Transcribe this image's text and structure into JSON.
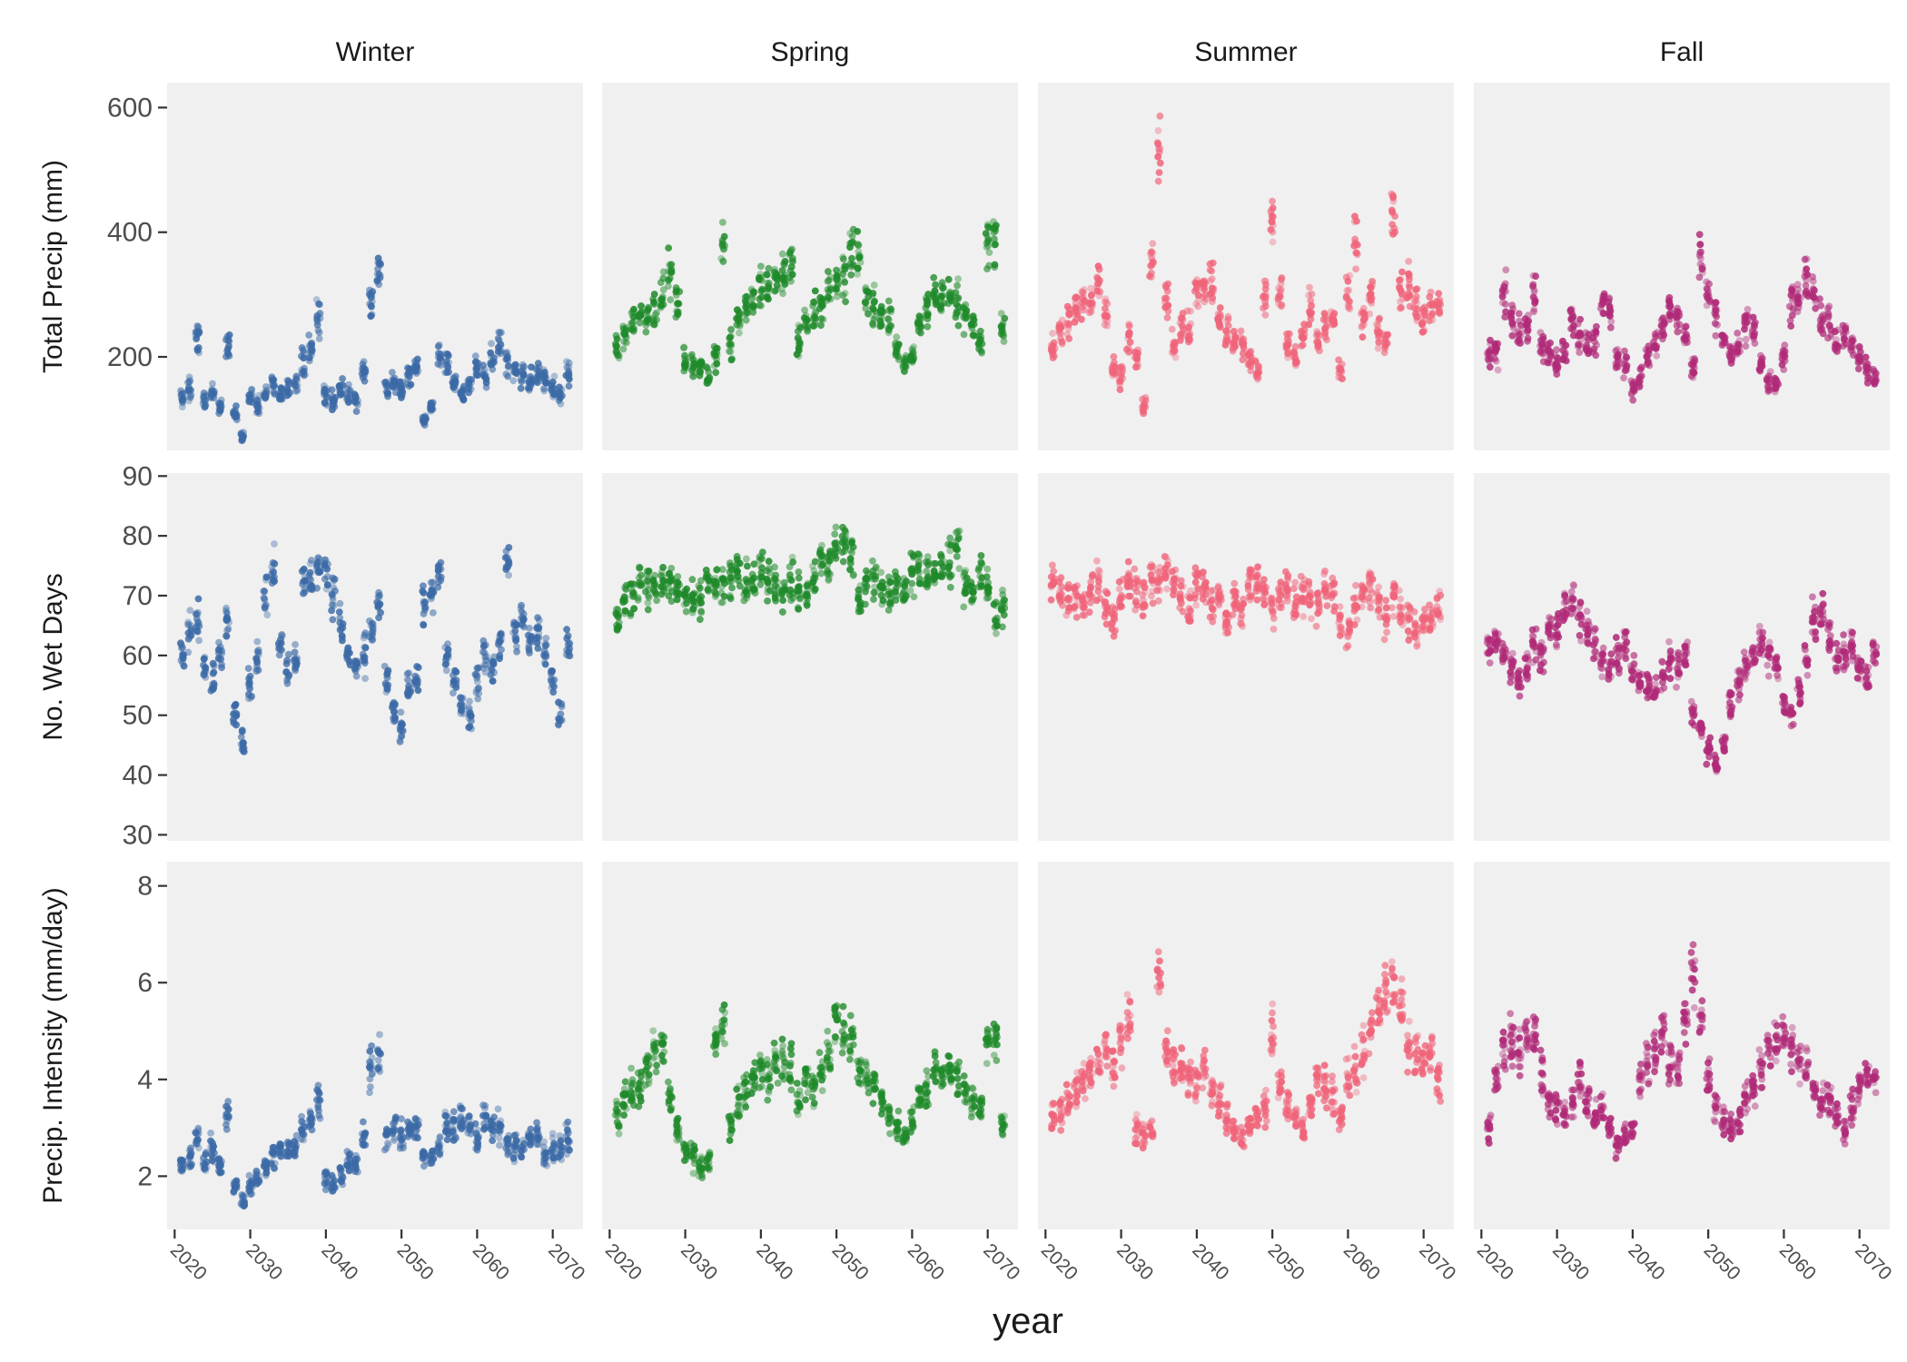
{
  "chart_data": {
    "type": "scatter",
    "facets": {
      "columns": [
        "Winter",
        "Spring",
        "Summer",
        "Fall"
      ],
      "rows": [
        {
          "key": "total_precip",
          "ylabel": "Total Precip (mm)",
          "ylim": [
            50,
            640
          ],
          "yticks": [
            200,
            400,
            600
          ]
        },
        {
          "key": "wet_days",
          "ylabel": "No. Wet Days",
          "ylim": [
            29,
            90.5
          ],
          "yticks": [
            30,
            40,
            50,
            60,
            70,
            80,
            90
          ]
        },
        {
          "key": "intensity",
          "ylabel": "Precip. Intensity (mm/day)",
          "ylim": [
            0.9,
            8.5
          ],
          "yticks": [
            2,
            4,
            6,
            8
          ]
        }
      ]
    },
    "xlabel": "year",
    "xlim": [
      2019,
      2074
    ],
    "xticks": [
      2020,
      2030,
      2040,
      2050,
      2060,
      2070
    ],
    "colors": {
      "Winter": "#3b6aa6",
      "Spring": "#1f8a2a",
      "Summer": "#f0647a",
      "Fall": "#b02a78"
    },
    "panel_background": "#f0f0f0",
    "legend": "none",
    "grid": false,
    "years": [
      2021,
      2072
    ],
    "members_per_year": 13,
    "series": {
      "Winter": {
        "total_precip": [
          135,
          150,
          230,
          130,
          145,
          120,
          220,
          110,
          70,
          130,
          120,
          140,
          155,
          140,
          150,
          160,
          190,
          210,
          260,
          140,
          130,
          150,
          140,
          130,
          180,
          290,
          330,
          150,
          160,
          150,
          170,
          180,
          100,
          120,
          200,
          190,
          160,
          140,
          155,
          180,
          170,
          200,
          220,
          190,
          175,
          170,
          160,
          175,
          165,
          150,
          140,
          170
        ],
        "wet_days": [
          60,
          64,
          66,
          58,
          56,
          60,
          66,
          50,
          45,
          55,
          60,
          70,
          74,
          62,
          58,
          60,
          72,
          73,
          74,
          75,
          70,
          65,
          60,
          58,
          60,
          64,
          68,
          56,
          50,
          48,
          55,
          56,
          68,
          70,
          74,
          60,
          55,
          52,
          50,
          56,
          60,
          58,
          62,
          76,
          64,
          66,
          62,
          64,
          60,
          56,
          50,
          62
        ],
        "intensity": [
          2.2,
          2.4,
          2.8,
          2.3,
          2.6,
          2.2,
          3.2,
          1.8,
          1.5,
          1.8,
          2.0,
          2.2,
          2.4,
          2.5,
          2.6,
          2.6,
          3.0,
          3.2,
          3.6,
          2.0,
          1.8,
          2.0,
          2.3,
          2.2,
          2.8,
          4.2,
          4.5,
          2.8,
          3.0,
          2.8,
          3.0,
          3.0,
          2.4,
          2.4,
          2.6,
          3.0,
          3.0,
          3.2,
          3.0,
          2.8,
          3.2,
          3.0,
          3.0,
          2.6,
          2.6,
          2.6,
          2.8,
          2.8,
          2.4,
          2.6,
          2.5,
          2.8
        ]
      },
      "Spring": {
        "total_precip": [
          210,
          240,
          255,
          265,
          270,
          280,
          300,
          330,
          290,
          200,
          190,
          180,
          170,
          200,
          380,
          220,
          260,
          280,
          285,
          300,
          310,
          320,
          330,
          340,
          230,
          260,
          270,
          280,
          300,
          320,
          330,
          360,
          370,
          290,
          280,
          270,
          260,
          210,
          190,
          200,
          250,
          280,
          300,
          290,
          300,
          290,
          270,
          250,
          220,
          380,
          390,
          240
        ],
        "wet_days": [
          66,
          69,
          70,
          72,
          71,
          72,
          72,
          72,
          71,
          70,
          70,
          70,
          73,
          72,
          72,
          73,
          74,
          72,
          72,
          74,
          73,
          72,
          70,
          72,
          71,
          70,
          73,
          76,
          75,
          78,
          79,
          77,
          70,
          72,
          73,
          71,
          70,
          72,
          70,
          74,
          75,
          74,
          73,
          75,
          76,
          78,
          72,
          70,
          74,
          72,
          66,
          68
        ],
        "intensity": [
          3.2,
          3.6,
          3.8,
          3.8,
          4.2,
          4.5,
          4.6,
          3.6,
          3.0,
          2.5,
          2.4,
          2.2,
          2.3,
          4.8,
          5.2,
          3.0,
          3.5,
          3.8,
          4.0,
          4.2,
          4.0,
          4.3,
          4.4,
          4.2,
          3.5,
          3.8,
          3.8,
          4.2,
          4.5,
          5.2,
          5.0,
          4.8,
          4.2,
          4.0,
          4.0,
          3.6,
          3.3,
          3.0,
          2.8,
          3.2,
          3.6,
          3.8,
          4.2,
          4.2,
          4.2,
          4.0,
          3.8,
          3.6,
          3.4,
          4.8,
          4.8,
          3.2
        ]
      },
      "Summer": {
        "total_precip": [
          220,
          240,
          260,
          280,
          285,
          290,
          330,
          270,
          180,
          170,
          230,
          200,
          120,
          350,
          520,
          300,
          220,
          250,
          240,
          310,
          300,
          320,
          260,
          240,
          230,
          220,
          200,
          180,
          300,
          420,
          300,
          220,
          200,
          230,
          280,
          230,
          250,
          260,
          180,
          300,
          380,
          260,
          300,
          240,
          230,
          420,
          300,
          320,
          280,
          260,
          280,
          280
        ],
        "wet_days": [
          72,
          70,
          69,
          70,
          68,
          70,
          72,
          68,
          66,
          70,
          72,
          71,
          70,
          72,
          72,
          74,
          72,
          70,
          68,
          72,
          70,
          68,
          70,
          66,
          70,
          68,
          72,
          72,
          70,
          68,
          70,
          72,
          68,
          70,
          70,
          68,
          72,
          70,
          66,
          64,
          68,
          70,
          72,
          68,
          66,
          70,
          68,
          66,
          64,
          66,
          66,
          68
        ],
        "intensity": [
          3.2,
          3.4,
          3.6,
          3.8,
          4.0,
          4.2,
          4.4,
          4.6,
          4.2,
          4.8,
          5.2,
          3.0,
          2.8,
          3.0,
          6.0,
          4.6,
          4.4,
          4.2,
          4.0,
          4.0,
          4.4,
          3.8,
          3.6,
          3.2,
          3.0,
          2.8,
          3.0,
          3.2,
          3.4,
          5.0,
          4.0,
          3.4,
          3.2,
          3.0,
          3.4,
          4.0,
          3.8,
          3.6,
          3.2,
          4.0,
          4.2,
          4.5,
          5.0,
          5.5,
          5.8,
          6.0,
          5.5,
          4.8,
          4.5,
          4.4,
          4.6,
          4.0
        ]
      },
      "Fall": {
        "total_precip": [
          200,
          210,
          300,
          260,
          240,
          250,
          300,
          220,
          200,
          190,
          210,
          260,
          240,
          220,
          230,
          280,
          270,
          200,
          190,
          150,
          170,
          200,
          220,
          250,
          280,
          260,
          240,
          180,
          350,
          300,
          260,
          230,
          200,
          220,
          250,
          240,
          190,
          160,
          150,
          200,
          280,
          300,
          320,
          300,
          260,
          250,
          220,
          240,
          220,
          200,
          180,
          170
        ],
        "wet_days": [
          62,
          63,
          60,
          58,
          56,
          58,
          62,
          60,
          65,
          64,
          68,
          70,
          66,
          64,
          62,
          60,
          58,
          60,
          62,
          58,
          56,
          55,
          54,
          56,
          60,
          58,
          60,
          50,
          48,
          44,
          42,
          45,
          52,
          55,
          58,
          60,
          62,
          60,
          58,
          52,
          50,
          54,
          60,
          66,
          68,
          64,
          60,
          60,
          62,
          58,
          56,
          60
        ],
        "intensity": [
          3.0,
          4.0,
          4.6,
          4.8,
          4.5,
          4.8,
          5.0,
          4.2,
          3.6,
          3.4,
          3.2,
          3.5,
          4.0,
          3.6,
          3.2,
          3.4,
          3.0,
          2.6,
          2.8,
          3.0,
          4.0,
          4.4,
          4.6,
          5.0,
          4.4,
          4.2,
          5.2,
          6.2,
          5.2,
          4.0,
          3.4,
          3.2,
          3.0,
          3.2,
          3.6,
          3.8,
          4.2,
          4.6,
          4.8,
          5.0,
          4.6,
          4.4,
          4.2,
          3.8,
          3.6,
          3.6,
          3.2,
          3.0,
          3.4,
          3.8,
          4.2,
          4.0
        ]
      }
    }
  }
}
